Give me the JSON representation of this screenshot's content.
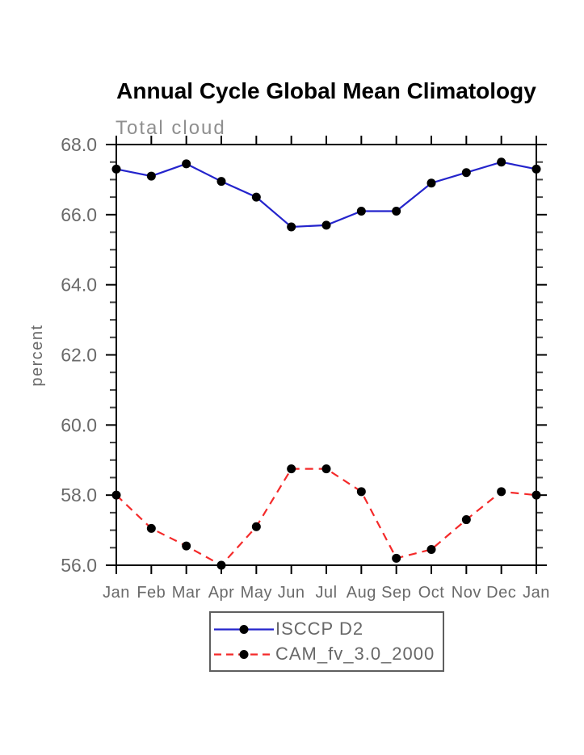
{
  "chart_data": {
    "type": "line",
    "title": "Annual Cycle Global Mean Climatology",
    "subtitle": "Total cloud",
    "ylabel": "percent",
    "xlabel": "",
    "categories": [
      "Jan",
      "Feb",
      "Mar",
      "Apr",
      "May",
      "Jun",
      "Jul",
      "Aug",
      "Sep",
      "Oct",
      "Nov",
      "Dec",
      "Jan"
    ],
    "y_tick_labels": [
      "68.0",
      "66.0",
      "64.0",
      "62.0",
      "60.0",
      "58.0",
      "56.0"
    ],
    "ylim": [
      56.0,
      68.0
    ],
    "y_major_step": 2.0,
    "y_minor_step": 0.5,
    "grid": false,
    "legend_position": "bottom-center",
    "marker_color": "#000000",
    "axis_color": "#000000",
    "tick_label_color": "#6a6a6a",
    "subtitle_color": "#8f8f8f",
    "series": [
      {
        "name": "ISCCP D2",
        "color": "#2424cc",
        "style": "solid",
        "values": [
          67.3,
          67.1,
          67.45,
          66.95,
          66.5,
          65.65,
          65.7,
          66.1,
          66.1,
          66.9,
          67.2,
          67.5,
          67.3
        ]
      },
      {
        "name": "CAM_fv_3.0_2000",
        "color": "#f42a2a",
        "style": "dashed",
        "values": [
          58.0,
          57.05,
          56.55,
          56.0,
          57.1,
          58.75,
          58.75,
          58.1,
          56.2,
          56.45,
          57.3,
          58.1,
          58.0
        ]
      }
    ]
  }
}
